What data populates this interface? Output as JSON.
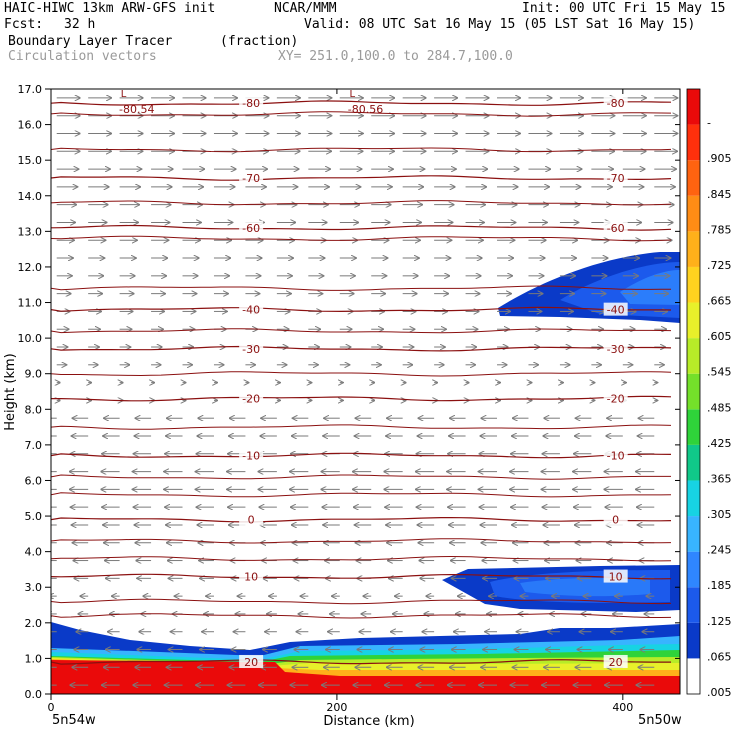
{
  "header": {
    "model": "HAIC-HIWC 13km ARW-GFS init",
    "org": "NCAR/MMM",
    "init": "Init: 00 UTC Fri 15 May 15",
    "fcst_label": "Fcst:",
    "fcst_value": "32 h",
    "valid": "Valid: 08 UTC Sat 16 May 15 (05 LST Sat 16 May 15)",
    "field1_name": "Boundary Layer Tracer",
    "field1_units": "(fraction)",
    "field2_name": "Circulation vectors",
    "xy_range": "XY= 251.0,100.0 to 284.7,100.0"
  },
  "chart_data": {
    "type": "heatmap",
    "title": "Boundary Layer Tracer",
    "ylabel": "Height (km)",
    "xlabel": "Distance (km)",
    "x_start_label": "5n54w",
    "x_end_label": "5n50w",
    "xlim": [
      0,
      440
    ],
    "ylim": [
      0,
      17
    ],
    "x_ticks": [
      "0",
      "200",
      "400"
    ],
    "x_tick_values": [
      0,
      200,
      400
    ],
    "y_ticks": [
      "0.0",
      "1.0",
      "2.0",
      "3.0",
      "4.0",
      "5.0",
      "6.0",
      "7.0",
      "8.0",
      "9.0",
      "10.0",
      "11.0",
      "12.0",
      "13.0",
      "14.0",
      "15.0",
      "16.0",
      "17.0"
    ],
    "y_tick_values": [
      0,
      1,
      2,
      3,
      4,
      5,
      6,
      7,
      8,
      9,
      10,
      11,
      12,
      13,
      14,
      15,
      16,
      17
    ],
    "colorbar": {
      "labels": [
        ".005",
        ".065",
        ".125",
        ".185",
        ".245",
        ".305",
        ".365",
        ".425",
        ".485",
        ".545",
        ".605",
        ".665",
        ".725",
        ".785",
        ".845",
        ".905",
        "-"
      ],
      "colors": [
        "#ffffff",
        "#0a3ac8",
        "#1c5aec",
        "#2f86ff",
        "#38b4ff",
        "#17d3e3",
        "#10c889",
        "#2fd33a",
        "#74e02a",
        "#b7ec28",
        "#e8f02a",
        "#ffd21f",
        "#ffb01a",
        "#ff8c15",
        "#ff6310",
        "#ff300c",
        "#ea0a0a"
      ]
    },
    "temperature_contours": {
      "color": "#8b1010",
      "levels": [
        {
          "label": "-80",
          "value": -80,
          "y_km": 16.6
        },
        {
          "label": "-70",
          "value": -70,
          "y_km": 14.5
        },
        {
          "label": "-60",
          "value": -60,
          "y_km": 13.1
        },
        {
          "label": "-40",
          "value": -40,
          "y_km": 10.8
        },
        {
          "label": "-30",
          "value": -30,
          "y_km": 9.7
        },
        {
          "label": "-20",
          "value": -20,
          "y_km": 8.3
        },
        {
          "label": "-10",
          "value": -10,
          "y_km": 6.7
        },
        {
          "label": "0",
          "value": 0,
          "y_km": 4.9
        },
        {
          "label": "10",
          "value": 10,
          "y_km": 3.3
        },
        {
          "label": "20",
          "value": 20,
          "y_km": 0.9
        }
      ],
      "minima": [
        {
          "label": "-80.54",
          "x_km": 60,
          "y_km": 16.6
        },
        {
          "label": "-80.56",
          "x_km": 220,
          "y_km": 16.6
        }
      ]
    },
    "tracer_regions": [
      {
        "name": "boundary layer",
        "x_range_km": [
          0,
          440
        ],
        "y_range_km": [
          0,
          2.0
        ],
        "max_value": 0.905
      },
      {
        "name": "upper anvil",
        "x_range_km": [
          300,
          440
        ],
        "y_range_km": [
          10.8,
          12.2
        ],
        "max_value": 0.125
      },
      {
        "name": "mid-level layer",
        "x_range_km": [
          270,
          440
        ],
        "y_range_km": [
          2.4,
          3.7
        ],
        "max_value": 0.125
      }
    ],
    "wind_vectors": [
      {
        "layer": "upper",
        "y_range_km": [
          9,
          17
        ],
        "direction": "eastward"
      },
      {
        "layer": "middle",
        "y_range_km": [
          4,
          8
        ],
        "direction": "westward"
      },
      {
        "layer": "lower",
        "y_range_km": [
          0,
          3
        ],
        "direction": "westward"
      }
    ],
    "grid": false
  }
}
